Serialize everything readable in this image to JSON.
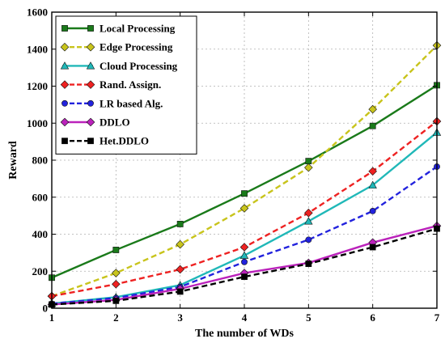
{
  "chart_data": {
    "type": "line",
    "xlabel": "The number of WDs",
    "ylabel": "Reward",
    "x": [
      1,
      2,
      3,
      4,
      5,
      6,
      7
    ],
    "xlim": [
      1,
      7
    ],
    "ylim": [
      0,
      1600
    ],
    "xticks": [
      "1",
      "2",
      "3",
      "4",
      "5",
      "6",
      "7"
    ],
    "yticks": [
      "0",
      "200",
      "400",
      "600",
      "800",
      "1000",
      "1200",
      "1400",
      "1600"
    ],
    "grid": true,
    "legend_position": "top-left",
    "series": [
      {
        "name": "Local Processing",
        "color": "#1a7a1a",
        "dash": "solid",
        "marker": "square",
        "values": [
          165,
          315,
          455,
          620,
          795,
          985,
          1205
        ]
      },
      {
        "name": "Edge Processing",
        "color": "#c8c41c",
        "dash": "dashed",
        "marker": "diamond",
        "values": [
          65,
          190,
          345,
          540,
          760,
          1075,
          1420
        ]
      },
      {
        "name": "Cloud Processing",
        "color": "#20b8b8",
        "dash": "solid",
        "marker": "triangle",
        "values": [
          25,
          60,
          125,
          285,
          470,
          665,
          950
        ]
      },
      {
        "name": "Rand. Assign.",
        "color": "#ee2222",
        "dash": "dashed",
        "marker": "diamond",
        "values": [
          65,
          130,
          210,
          330,
          515,
          740,
          1010
        ]
      },
      {
        "name": "LR based Alg.",
        "color": "#2222dd",
        "dash": "dashed",
        "marker": "circle",
        "values": [
          25,
          55,
          115,
          250,
          370,
          525,
          765
        ]
      },
      {
        "name": "DDLO",
        "color": "#bb22bb",
        "dash": "solid",
        "marker": "diamond",
        "values": [
          20,
          45,
          105,
          190,
          245,
          355,
          445
        ]
      },
      {
        "name": "Het.DDLO",
        "color": "#000000",
        "dash": "dashed",
        "marker": "square",
        "values": [
          20,
          40,
          90,
          170,
          240,
          330,
          430
        ]
      }
    ]
  }
}
